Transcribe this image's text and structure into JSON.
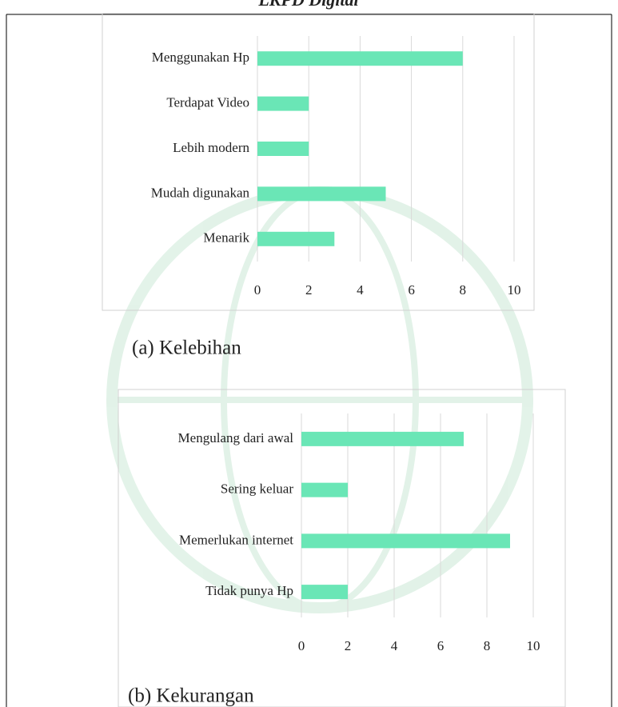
{
  "heading": "LKPD Digital",
  "chart_data": [
    {
      "type": "bar",
      "orientation": "horizontal",
      "caption": "(a) Kelebihan",
      "categories": [
        "Menggunakan Hp",
        "Terdapat Video",
        "Lebih modern",
        "Mudah digunakan",
        "Menarik"
      ],
      "values": [
        8,
        2,
        2,
        5,
        3
      ],
      "color": "#6ae6b6",
      "xlim": [
        0,
        10
      ],
      "xticks": [
        0,
        2,
        4,
        6,
        8,
        10
      ],
      "grid": true
    },
    {
      "type": "bar",
      "orientation": "horizontal",
      "caption": "(b) Kekurangan",
      "categories": [
        "Mengulang dari awal",
        "Sering keluar",
        "Memerlukan internet",
        "Tidak punya Hp"
      ],
      "values": [
        7,
        2,
        9,
        2
      ],
      "color": "#6ae6b6",
      "xlim": [
        0,
        10
      ],
      "xticks": [
        0,
        2,
        4,
        6,
        8,
        10
      ],
      "grid": true
    }
  ]
}
